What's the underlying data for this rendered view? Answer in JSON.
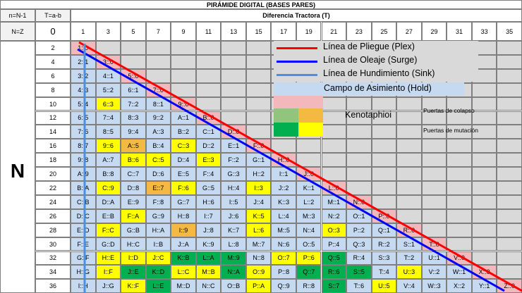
{
  "title": "PIRÁMIDE DIGITAL (BASES PARES)",
  "header": {
    "n_label": "n=N-1",
    "t_label": "T=a-b",
    "nz_label": "N=Z",
    "t_zero": "0",
    "diff_title": "Diferencia Tractora (T)",
    "side_letter": "N"
  },
  "t_values": [
    "1",
    "3",
    "5",
    "7",
    "9",
    "11",
    "13",
    "15",
    "17",
    "19",
    "21",
    "23",
    "25",
    "27",
    "29",
    "31",
    "33",
    "35"
  ],
  "n_values": [
    "2",
    "4",
    "6",
    "8",
    "10",
    "12",
    "14",
    "16",
    "18",
    "20",
    "22",
    "24",
    "26",
    "28",
    "30",
    "32",
    "34",
    "36"
  ],
  "rows": [
    [
      "1::0"
    ],
    [
      "2::1",
      "3::0"
    ],
    [
      "3::2",
      "4::1",
      "5::0"
    ],
    [
      "4::3",
      "5::2",
      "6::1",
      "7::0"
    ],
    [
      "5::4",
      "6::3",
      "7::2",
      "8::1",
      "9::0"
    ],
    [
      "6::5",
      "7::4",
      "8::3",
      "9::2",
      "A::1",
      "B::0"
    ],
    [
      "7::6",
      "8::5",
      "9::4",
      "A::3",
      "B::2",
      "C::1",
      "D::0"
    ],
    [
      "8::7",
      "9::6",
      "A::5",
      "B::4",
      "C::3",
      "D::2",
      "E::1",
      "F::0"
    ],
    [
      "9::8",
      "A::7",
      "B::6",
      "C::5",
      "D::4",
      "E::3",
      "F::2",
      "G::1",
      "H::0"
    ],
    [
      "A::9",
      "B::8",
      "C::7",
      "D::6",
      "E::5",
      "F::4",
      "G::3",
      "H::2",
      "I::1",
      "J::0"
    ],
    [
      "B::A",
      "C::9",
      "D::8",
      "E::7",
      "F::6",
      "G::5",
      "H::4",
      "I::3",
      "J::2",
      "K::1",
      "L::0"
    ],
    [
      "C::B",
      "D::A",
      "E::9",
      "F::8",
      "G::7",
      "H::6",
      "I::5",
      "J::4",
      "K::3",
      "L::2",
      "M::1",
      "N::0"
    ],
    [
      "D::C",
      "E::B",
      "F::A",
      "G::9",
      "H::8",
      "I::7",
      "J::6",
      "K::5",
      "L::4",
      "M::3",
      "N::2",
      "O::1",
      "P::0"
    ],
    [
      "E::D",
      "F::C",
      "G::B",
      "H::A",
      "I::9",
      "J::8",
      "K::7",
      "L::6",
      "M::5",
      "N::4",
      "O::3",
      "P::2",
      "Q::1",
      "R::0"
    ],
    [
      "F::E",
      "G::D",
      "H::C",
      "I::B",
      "J::A",
      "K::9",
      "L::8",
      "M::7",
      "N::6",
      "O::5",
      "P::4",
      "Q::3",
      "R::2",
      "S::1",
      "T::0"
    ],
    [
      "G::F",
      "H::E",
      "I::D",
      "J::C",
      "K::B",
      "L::A",
      "M::9",
      "N::8",
      "O::7",
      "P::6",
      "Q::5",
      "R::4",
      "S::3",
      "T::2",
      "U::1",
      "V::0"
    ],
    [
      "H::G",
      "I::F",
      "J::E",
      "K::D",
      "L::C",
      "M::B",
      "N::A",
      "O::9",
      "P::8",
      "Q::7",
      "R::6",
      "S::5",
      "T::4",
      "U::3",
      "V::2",
      "W::1",
      "X::0"
    ],
    [
      "I::H",
      "J::G",
      "K::F",
      "L::E",
      "M::D",
      "N::C",
      "O::B",
      "P::A",
      "Q::9",
      "R::8",
      "S::7",
      "T::6",
      "U::5",
      "V::4",
      "W::3",
      "X::2",
      "Y::1",
      "Z::0"
    ]
  ],
  "legend": {
    "plex": "Línea de Pliegue (Plex)",
    "surge": "Línea de Oleaje (Surge)",
    "sink": "Línea de Hundimiento (Sink)",
    "hold": "Campo de Asimiento (Hold)",
    "kenotaphioi": "Kenotaphioi",
    "collapse": "Puertas de colapso",
    "mutation": "Puertas de mutación"
  },
  "colors": {
    "hold": "#c5d9f1",
    "fold": "#f2b8bc",
    "bg": "#d9d9d9",
    "yellow": "#ffff00",
    "amber": "#f4b942",
    "green": "#00b050",
    "light_green": "#92c47d",
    "plex_line": "#ff0000",
    "surge_line": "#0000ff",
    "sink_line": "#4a8fe0"
  },
  "colored_cells": {
    "yellow": [
      "6::3",
      "9::6",
      "B::6",
      "C::3",
      "E::3",
      "I::3",
      "K::5",
      "L::6",
      "C::9",
      "F::6",
      "I::D",
      "J::C",
      "O::3",
      "I::F",
      "O::9",
      "U::3",
      "K::F",
      "P::A",
      "U::5",
      "F::C",
      "F::A",
      "C::5",
      "H::E",
      "O::7",
      "P::6",
      "L::C",
      "M::B"
    ],
    "amber": [
      "A::5",
      "I::9",
      "E::7"
    ],
    "green": [
      "K::B",
      "L::A",
      "M::9",
      "N::A",
      "Q::5",
      "R::6",
      "Q::7",
      "S::5",
      "S::7",
      "L::E",
      "K::D",
      "J::E"
    ]
  }
}
